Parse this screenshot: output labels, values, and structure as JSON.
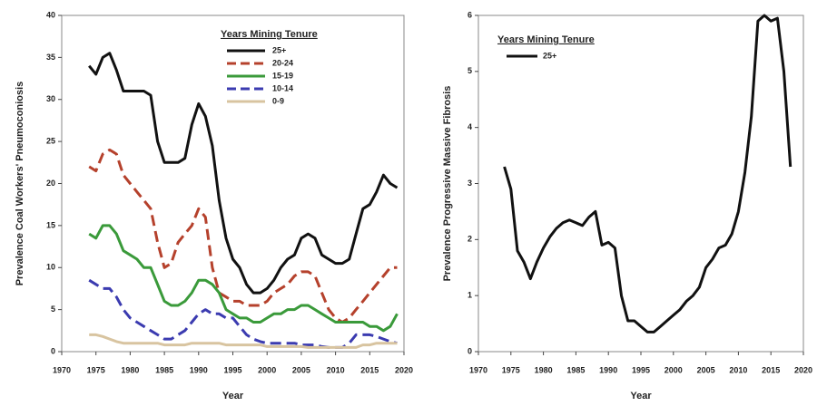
{
  "chart_data": [
    {
      "type": "line",
      "x_label": "Year",
      "y_label": "Prevalence Coal Workers' Pneumoconiosis",
      "legend_title": "Years Mining Tenure",
      "xlim": [
        1970,
        2020
      ],
      "xticks": [
        1970,
        1975,
        1980,
        1985,
        1990,
        1995,
        2000,
        2005,
        2010,
        2015,
        2020
      ],
      "ylim": [
        0,
        40
      ],
      "yticks": [
        0,
        5,
        10,
        15,
        20,
        25,
        30,
        35,
        40
      ],
      "x": [
        1974,
        1975,
        1976,
        1977,
        1978,
        1979,
        1980,
        1981,
        1982,
        1983,
        1984,
        1985,
        1986,
        1987,
        1988,
        1989,
        1990,
        1991,
        1992,
        1993,
        1994,
        1995,
        1996,
        1997,
        1998,
        1999,
        2000,
        2001,
        2002,
        2003,
        2004,
        2005,
        2006,
        2007,
        2008,
        2009,
        2010,
        2011,
        2012,
        2013,
        2014,
        2015,
        2016,
        2017,
        2018,
        2019
      ],
      "series": [
        {
          "name": "25+",
          "color": "#111111",
          "style": "solid",
          "values": [
            34,
            33,
            35,
            35.5,
            33.5,
            31,
            31,
            31,
            31,
            30.5,
            25,
            22.5,
            22.5,
            22.5,
            23,
            27,
            29.5,
            28,
            24.5,
            18,
            13.5,
            11,
            10,
            8,
            7,
            7,
            7.5,
            8.5,
            10,
            11,
            11.5,
            13.5,
            14,
            13.5,
            11.5,
            11,
            10.5,
            10.5,
            11,
            14,
            17,
            17.5,
            19,
            21,
            20,
            19.5
          ]
        },
        {
          "name": "20-24",
          "color": "#b5412c",
          "style": "dashed",
          "values": [
            22,
            21.5,
            23.5,
            24,
            23.5,
            21,
            20,
            19,
            18,
            17,
            13,
            10,
            10.5,
            13,
            14,
            15,
            17,
            16,
            10,
            7,
            6.5,
            6,
            6,
            5.5,
            5.5,
            5.5,
            6,
            7,
            7.5,
            8,
            9,
            9.5,
            9.5,
            9,
            7,
            5,
            4,
            3.5,
            4,
            5,
            6,
            7,
            8,
            9,
            10,
            10
          ]
        },
        {
          "name": "15-19",
          "color": "#3a9a3a",
          "style": "solid",
          "values": [
            14,
            13.5,
            15,
            15,
            14,
            12,
            11.5,
            11,
            10,
            10,
            8,
            6,
            5.5,
            5.5,
            6,
            7,
            8.5,
            8.5,
            8,
            7,
            5,
            4.5,
            4,
            4,
            3.5,
            3.5,
            4,
            4.5,
            4.5,
            5,
            5,
            5.5,
            5.5,
            5,
            4.5,
            4,
            3.5,
            3.5,
            3.5,
            3.5,
            3.5,
            3,
            3,
            2.5,
            3,
            4.5
          ]
        },
        {
          "name": "10-14",
          "color": "#3b3bb0",
          "style": "dashed",
          "values": [
            8.5,
            8,
            7.5,
            7.5,
            6.5,
            5,
            4,
            3.5,
            3,
            2.5,
            2,
            1.5,
            1.5,
            2,
            2.5,
            3.5,
            4.5,
            5,
            4.5,
            4.5,
            4,
            4,
            3,
            2,
            1.5,
            1.2,
            1,
            1,
            1,
            1,
            1,
            0.8,
            0.8,
            0.8,
            0.6,
            0.5,
            0.5,
            0.5,
            1,
            2,
            2,
            2,
            1.8,
            1.5,
            1.2,
            1
          ]
        },
        {
          "name": "0-9",
          "color": "#d8c4a0",
          "style": "solid",
          "values": [
            2,
            2,
            1.8,
            1.5,
            1.2,
            1,
            1,
            1,
            1,
            1,
            1,
            0.8,
            0.8,
            0.8,
            0.8,
            1,
            1,
            1,
            1,
            1,
            0.8,
            0.8,
            0.8,
            0.8,
            0.8,
            0.8,
            0.6,
            0.6,
            0.6,
            0.6,
            0.6,
            0.6,
            0.5,
            0.5,
            0.5,
            0.5,
            0.5,
            0.5,
            0.5,
            0.5,
            0.8,
            0.8,
            1,
            1,
            1,
            1
          ]
        }
      ]
    },
    {
      "type": "line",
      "x_label": "Year",
      "y_label": "Prevalence Progressive Massive Fibrosis",
      "legend_title": "Years Mining Tenure",
      "xlim": [
        1970,
        2020
      ],
      "xticks": [
        1970,
        1975,
        1980,
        1985,
        1990,
        1995,
        2000,
        2005,
        2010,
        2015,
        2020
      ],
      "ylim": [
        0,
        6
      ],
      "yticks": [
        0,
        1,
        2,
        3,
        4,
        5,
        6
      ],
      "x": [
        1974,
        1975,
        1976,
        1977,
        1978,
        1979,
        1980,
        1981,
        1982,
        1983,
        1984,
        1985,
        1986,
        1987,
        1988,
        1989,
        1990,
        1991,
        1992,
        1993,
        1994,
        1995,
        1996,
        1997,
        1998,
        1999,
        2000,
        2001,
        2002,
        2003,
        2004,
        2005,
        2006,
        2007,
        2008,
        2009,
        2010,
        2011,
        2012,
        2013,
        2014,
        2015,
        2016,
        2017,
        2018
      ],
      "series": [
        {
          "name": "25+",
          "color": "#111111",
          "style": "solid",
          "values": [
            3.3,
            2.9,
            1.8,
            1.6,
            1.3,
            1.6,
            1.85,
            2.05,
            2.2,
            2.3,
            2.35,
            2.3,
            2.25,
            2.4,
            2.5,
            1.9,
            1.95,
            1.85,
            1.0,
            0.55,
            0.55,
            0.45,
            0.35,
            0.35,
            0.45,
            0.55,
            0.65,
            0.75,
            0.9,
            1.0,
            1.15,
            1.5,
            1.65,
            1.85,
            1.9,
            2.1,
            2.5,
            3.2,
            4.2,
            5.9,
            6.0,
            5.9,
            5.95,
            5.0,
            3.3
          ]
        }
      ]
    }
  ]
}
